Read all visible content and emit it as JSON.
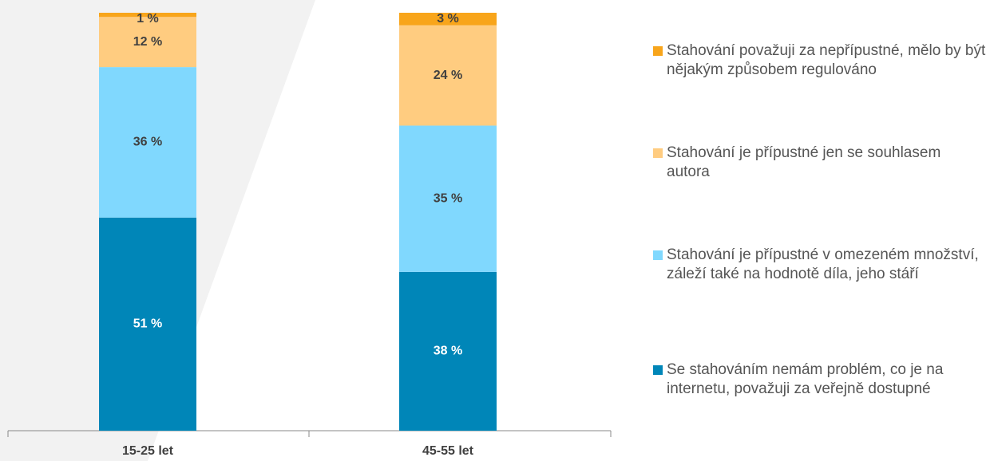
{
  "chart_data": {
    "type": "stacked_bar",
    "categories": [
      "15-25 let",
      "45-55 let"
    ],
    "ylim": [
      0,
      100
    ],
    "series": [
      {
        "name": "Se stahováním nemám problém, co je na internetu, považuji za veřejně dostupné",
        "color": "#0086b8",
        "values": [
          51,
          38
        ],
        "value_labels": [
          "51 %",
          "38 %"
        ]
      },
      {
        "name": "Stahování je přípustné v omezeném množství, záleží také na hodnotě díla, jeho stáří",
        "color": "#80d8fe",
        "values": [
          36,
          35
        ],
        "value_labels": [
          "36 %",
          "35 %"
        ]
      },
      {
        "name": "Stahování je přípustné jen se souhlasem autora",
        "color": "#ffcc80",
        "values": [
          12,
          24
        ],
        "value_labels": [
          "12 %",
          "24 %"
        ]
      },
      {
        "name": "Stahování považuji za nepřípustné, mělo by být nějakým způsobem regulováno",
        "color": "#f8a51b",
        "values": [
          1,
          3
        ],
        "value_labels": [
          "1 %",
          "3 %"
        ]
      }
    ]
  }
}
